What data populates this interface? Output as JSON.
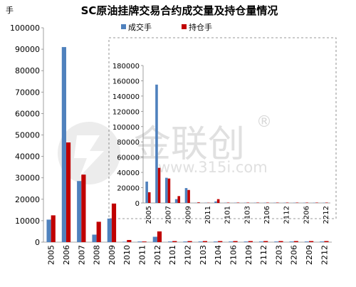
{
  "chart_data": [
    {
      "type": "bar",
      "title": "SC原油挂牌交易合约成交量及持仓量情况",
      "unit_label": "手",
      "ylim": [
        0,
        100000
      ],
      "yticks": [
        0,
        10000,
        20000,
        30000,
        40000,
        50000,
        60000,
        70000,
        80000,
        90000,
        100000
      ],
      "categories": [
        "2005",
        "2006",
        "2007",
        "2008",
        "2009",
        "2010",
        "2011",
        "2012",
        "2101",
        "2102",
        "2103",
        "2104",
        "2106",
        "2109",
        "2112",
        "2203",
        "2206",
        "2209",
        "2212"
      ],
      "series": [
        {
          "name": "成交手",
          "color": "#4f81bd",
          "values": [
            10500,
            91000,
            28500,
            3500,
            11000,
            200,
            300,
            2500,
            300,
            300,
            300,
            300,
            300,
            300,
            300,
            300,
            300,
            300,
            300
          ]
        },
        {
          "name": "持仓手",
          "color": "#c00000",
          "values": [
            12500,
            46500,
            31500,
            9500,
            18000,
            1000,
            300,
            5000,
            500,
            500,
            500,
            500,
            500,
            500,
            500,
            500,
            500,
            500,
            500
          ]
        }
      ],
      "legend_position": "top-right"
    },
    {
      "type": "bar",
      "ylim": [
        0,
        180000
      ],
      "yticks": [
        0,
        20000,
        40000,
        60000,
        80000,
        100000,
        120000,
        140000,
        160000,
        180000
      ],
      "categories": [
        "2005",
        "2006",
        "2007",
        "2008",
        "2009",
        "2010",
        "2011",
        "2012",
        "2101",
        "2102",
        "2103",
        "2104",
        "2106",
        "2109",
        "2112",
        "2203",
        "2206",
        "2209",
        "2212"
      ],
      "tick_labels": [
        "2005",
        "",
        "2007",
        "",
        "2009",
        "",
        "2011",
        "",
        "2101",
        "",
        "2103",
        "",
        "2106",
        "",
        "2112",
        "",
        "2206",
        "",
        "2212"
      ],
      "series": [
        {
          "name": "成交手",
          "color": "#4f81bd",
          "values": [
            28000,
            155000,
            33000,
            5000,
            19500,
            200,
            300,
            2000,
            300,
            300,
            300,
            300,
            300,
            300,
            300,
            300,
            300,
            300,
            300
          ]
        },
        {
          "name": "持仓手",
          "color": "#c00000",
          "values": [
            14000,
            46000,
            32000,
            9000,
            17000,
            800,
            300,
            5000,
            500,
            500,
            500,
            500,
            500,
            500,
            500,
            500,
            500,
            500,
            500
          ]
        }
      ]
    }
  ],
  "watermark": {
    "brand": "金联创",
    "url": "www.315i.com",
    "reg": "®"
  }
}
